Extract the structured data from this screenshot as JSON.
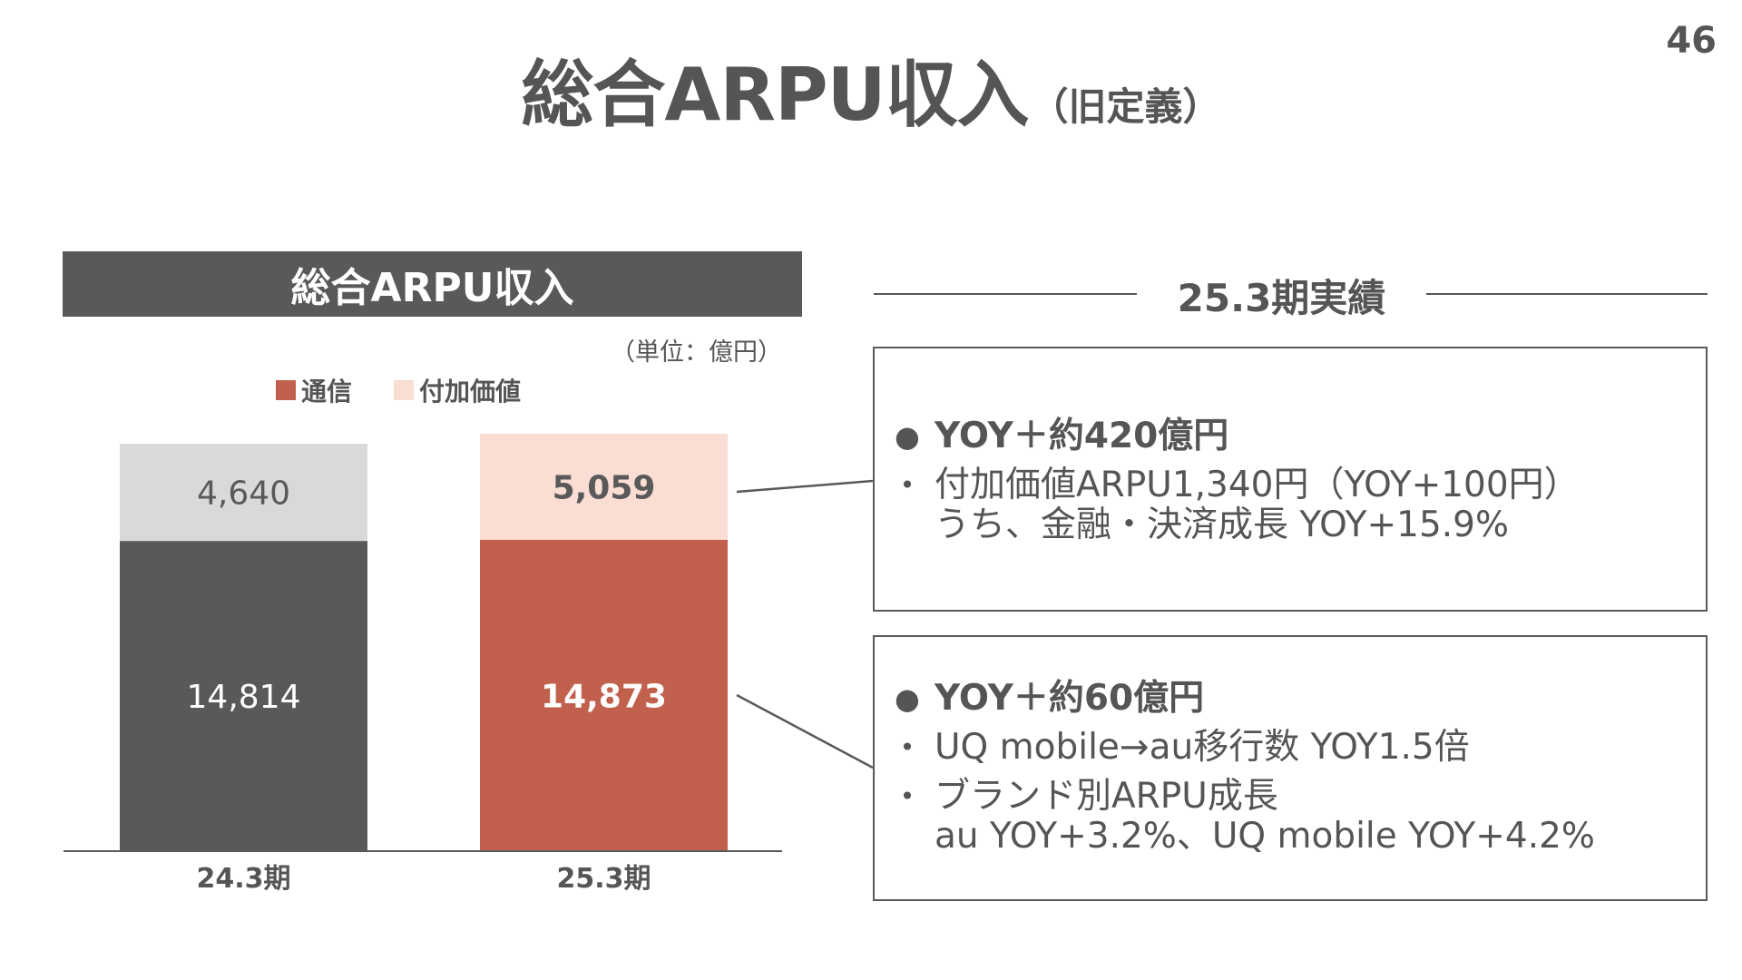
{
  "page_number": "46",
  "title": {
    "main": "総合ARPU収入",
    "sub": "（旧定義）"
  },
  "chart_header": "総合ARPU収入",
  "unit_label": "（単位：億円）",
  "legend": [
    {
      "label": "通信",
      "color": "#C0604D"
    },
    {
      "label": "付加価値",
      "color": "#FADDD3"
    }
  ],
  "chart_data": {
    "type": "bar",
    "stacked": true,
    "title": "総合ARPU収入",
    "unit": "（単位：億円）",
    "categories": [
      "24.3期",
      "25.3期"
    ],
    "series": [
      {
        "name": "通信",
        "values": [
          14814,
          14873
        ],
        "labels": [
          "14,814",
          "14,873"
        ]
      },
      {
        "name": "付加価値",
        "values": [
          4640,
          5059
        ],
        "labels": [
          "4,640",
          "5,059"
        ]
      }
    ],
    "ylim": [
      0,
      20000
    ],
    "grid": false,
    "legend_position": "top-left",
    "colors": {
      "prior_base": "#595959",
      "prior_top": "#D9D9D9",
      "current_base": "#C0604D",
      "current_top": "#FADDD3"
    }
  },
  "results": {
    "heading": "25.3期実績",
    "box1": {
      "head": "YOY＋約420億円",
      "bullet_line1": "付加価値ARPU1,340円（YOY+100円）",
      "bullet_line2": "うち、金融・決済成長 YOY+15.9%"
    },
    "box2": {
      "head": "YOY＋約60億円",
      "bullet1": "UQ mobile→au移行数 YOY1.5倍",
      "bullet2_line1": "ブランド別ARPU成長",
      "bullet2_line2": "au YOY+3.2%、UQ mobile YOY+4.2%"
    }
  }
}
